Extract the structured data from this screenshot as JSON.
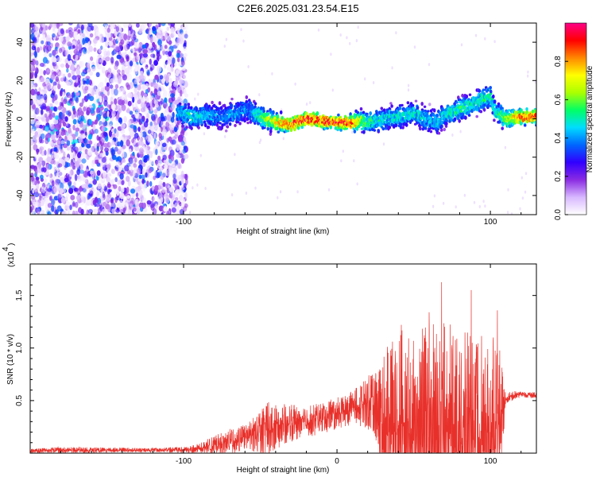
{
  "title": "C2E6.2025.031.23.54.E15",
  "colors": {
    "line": "#e8302a",
    "axis": "#000000"
  },
  "chart_data": [
    {
      "type": "heatmap",
      "xlabel": "Height of straight line (km)",
      "ylabel": "Frequency (Hz)",
      "xlim": [
        -200,
        130
      ],
      "ylim": [
        -50,
        50
      ],
      "x_ticks": [
        -100,
        0,
        100
      ],
      "x_tick_labels": [
        "-100",
        "",
        "100"
      ],
      "y_ticks": [
        -40,
        -20,
        0,
        20,
        40
      ],
      "y_tick_labels": [
        "-40",
        "-20",
        "0",
        "20",
        "40"
      ],
      "colorbar": {
        "label": "Normalized spectral amplitude",
        "range": [
          0,
          1
        ],
        "ticks": [
          0.0,
          0.2,
          0.4,
          0.6,
          0.8
        ],
        "tick_labels": [
          "0.0",
          "0.2",
          "0.4",
          "0.6",
          "0.8"
        ],
        "colormap": [
          "#ffffff",
          "#d8b8ff",
          "#8a2be2",
          "#3000ff",
          "#0066ff",
          "#00ddff",
          "#00ff66",
          "#aaff00",
          "#ffff00",
          "#ff8800",
          "#ff0000",
          "#ff0088"
        ]
      },
      "ridge": {
        "x": [
          -104,
          -95,
          -85,
          -75,
          -65,
          -58,
          -50,
          -40,
          -30,
          -20,
          -10,
          0,
          10,
          15,
          20,
          30,
          40,
          50,
          60,
          65,
          70,
          80,
          90,
          100,
          103,
          110,
          120,
          130
        ],
        "center_hz": [
          4,
          1,
          2,
          1,
          3,
          5,
          1,
          -2,
          -3,
          0,
          -1,
          -2,
          -2,
          -1,
          -2,
          0,
          1,
          3,
          -1,
          -2,
          2,
          5,
          8,
          12,
          4,
          0,
          1,
          1
        ],
        "intensity": [
          0.45,
          0.5,
          0.45,
          0.4,
          0.45,
          0.4,
          0.55,
          0.75,
          0.9,
          0.95,
          0.9,
          0.95,
          0.9,
          0.75,
          0.55,
          0.5,
          0.5,
          0.5,
          0.45,
          0.45,
          0.5,
          0.55,
          0.55,
          0.55,
          0.5,
          0.65,
          0.9,
          0.9
        ]
      },
      "noise_region_x": [
        -200,
        -98
      ]
    },
    {
      "type": "line",
      "xlabel": "Height of straight line (km)",
      "ylabel": "SNR (10 * v/v)",
      "y_multiplier_label": "(x10",
      "y_multiplier_exp": "4",
      "xlim": [
        -200,
        130
      ],
      "ylim": [
        0,
        18000
      ],
      "x_ticks": [
        -100,
        0,
        100
      ],
      "x_tick_labels": [
        "-100",
        "0",
        "100"
      ],
      "y_ticks": [
        5000,
        10000,
        15000
      ],
      "y_tick_labels": [
        "0.5",
        "1.0",
        "1.5"
      ],
      "series": [
        {
          "envelope_x": [
            -200,
            -180,
            -150,
            -120,
            -100,
            -90,
            -80,
            -70,
            -60,
            -50,
            -45,
            -40,
            -30,
            -20,
            -10,
            0,
            10,
            20,
            25,
            30,
            40,
            50,
            60,
            70,
            80,
            90,
            100,
            105,
            110,
            115,
            120,
            130
          ],
          "baseline": [
            200,
            300,
            300,
            300,
            300,
            400,
            800,
            1100,
            1500,
            1900,
            2300,
            2600,
            2800,
            3000,
            3300,
            3800,
            4300,
            4800,
            4600,
            3500,
            3000,
            2500,
            2000,
            2000,
            2000,
            2000,
            2000,
            2200,
            5200,
            5500,
            5600,
            5500
          ],
          "amplitude": [
            200,
            300,
            250,
            200,
            300,
            500,
            900,
            1200,
            1200,
            2200,
            3000,
            2200,
            1800,
            1500,
            1500,
            1500,
            1600,
            2600,
            3000,
            6500,
            9500,
            10500,
            11500,
            10500,
            10000,
            9500,
            9000,
            9000,
            600,
            400,
            300,
            300
          ]
        }
      ]
    }
  ]
}
